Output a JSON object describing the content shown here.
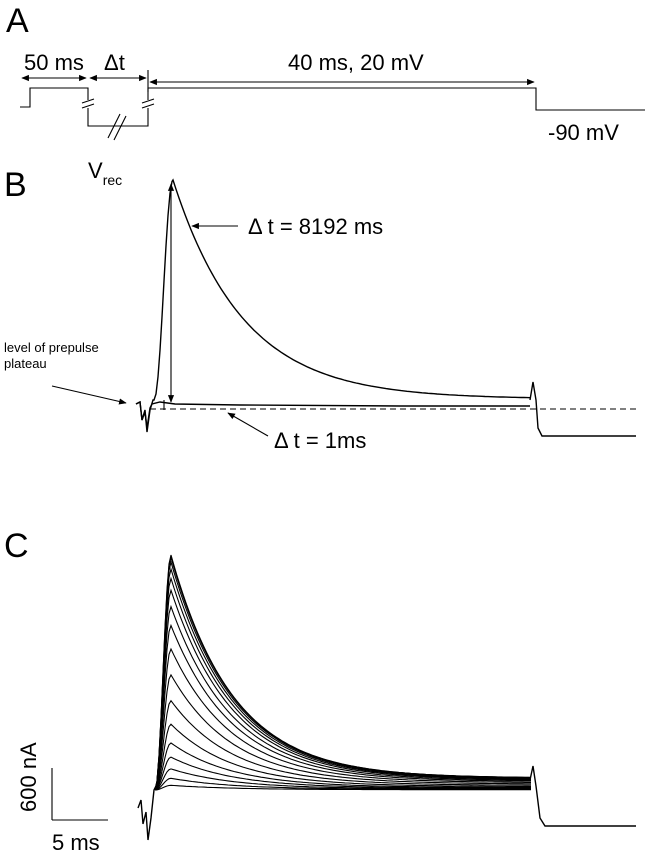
{
  "panels": {
    "a": {
      "label": "A",
      "duration1": "50 ms",
      "delta_t": "Δt",
      "duration2": "40 ms, 20 mV",
      "v_rec_main": "V",
      "v_rec_sub": "rec",
      "holding": "-90 mV"
    },
    "b": {
      "label": "B",
      "upper_annotation": "Δ t = 8192 ms",
      "lower_annotation": "Δ t = 1ms",
      "prepulse_line1": "level of prepulse",
      "prepulse_line2": "plateau"
    },
    "c": {
      "label": "C",
      "scale_y": "600 nA",
      "scale_x": "5 ms",
      "family_peaks": [
        0.02,
        0.05,
        0.09,
        0.14,
        0.2,
        0.28,
        0.38,
        0.49,
        0.6,
        0.7,
        0.78,
        0.85,
        0.9,
        0.94,
        0.97,
        0.99,
        1.0
      ]
    }
  }
}
